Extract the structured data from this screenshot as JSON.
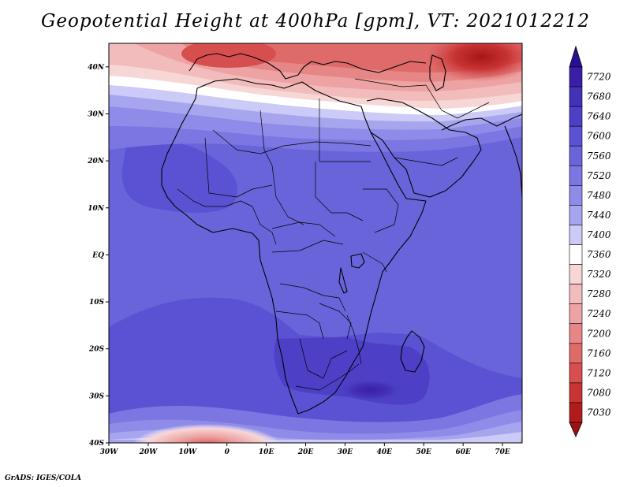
{
  "title": "Geopotential Height at 400hPa [gpm], VT: 2021012212",
  "footer": "GrADS: IGES/COLA",
  "map": {
    "lon_range": [
      -30,
      75
    ],
    "lat_range": [
      -40,
      45
    ],
    "lon_ticks": [
      {
        "value": -30,
        "label": "30W"
      },
      {
        "value": -20,
        "label": "20W"
      },
      {
        "value": -10,
        "label": "10W"
      },
      {
        "value": 0,
        "label": "0"
      },
      {
        "value": 10,
        "label": "10E"
      },
      {
        "value": 20,
        "label": "20E"
      },
      {
        "value": 30,
        "label": "30E"
      },
      {
        "value": 40,
        "label": "40E"
      },
      {
        "value": 50,
        "label": "50E"
      },
      {
        "value": 60,
        "label": "60E"
      },
      {
        "value": 70,
        "label": "70E"
      }
    ],
    "lat_ticks": [
      {
        "value": 40,
        "label": "40N"
      },
      {
        "value": 30,
        "label": "30N"
      },
      {
        "value": 20,
        "label": "20N"
      },
      {
        "value": 10,
        "label": "10N"
      },
      {
        "value": 0,
        "label": "EQ"
      },
      {
        "value": -10,
        "label": "10S"
      },
      {
        "value": -20,
        "label": "20S"
      },
      {
        "value": -30,
        "label": "30S"
      },
      {
        "value": -40,
        "label": "40S"
      }
    ]
  },
  "colorbar": {
    "levels": [
      "7720",
      "7680",
      "7640",
      "7600",
      "7560",
      "7520",
      "7480",
      "7440",
      "7400",
      "7360",
      "7320",
      "7280",
      "7240",
      "7200",
      "7160",
      "7120",
      "7080",
      "7030"
    ],
    "colors": [
      "#3a1fa6",
      "#4431b8",
      "#4d40c6",
      "#5a52d2",
      "#6a64da",
      "#7b76e1",
      "#8f8be8",
      "#a8a5ef",
      "#cccaf6",
      "#ffffff",
      "#f7d6d6",
      "#f2bcbc",
      "#eda3a3",
      "#e68686",
      "#df6a6a",
      "#d64e4e",
      "#c83434",
      "#b01c1c"
    ],
    "top_arrow_color": "#2a0f96",
    "bottom_arrow_color": "#a01010"
  }
}
